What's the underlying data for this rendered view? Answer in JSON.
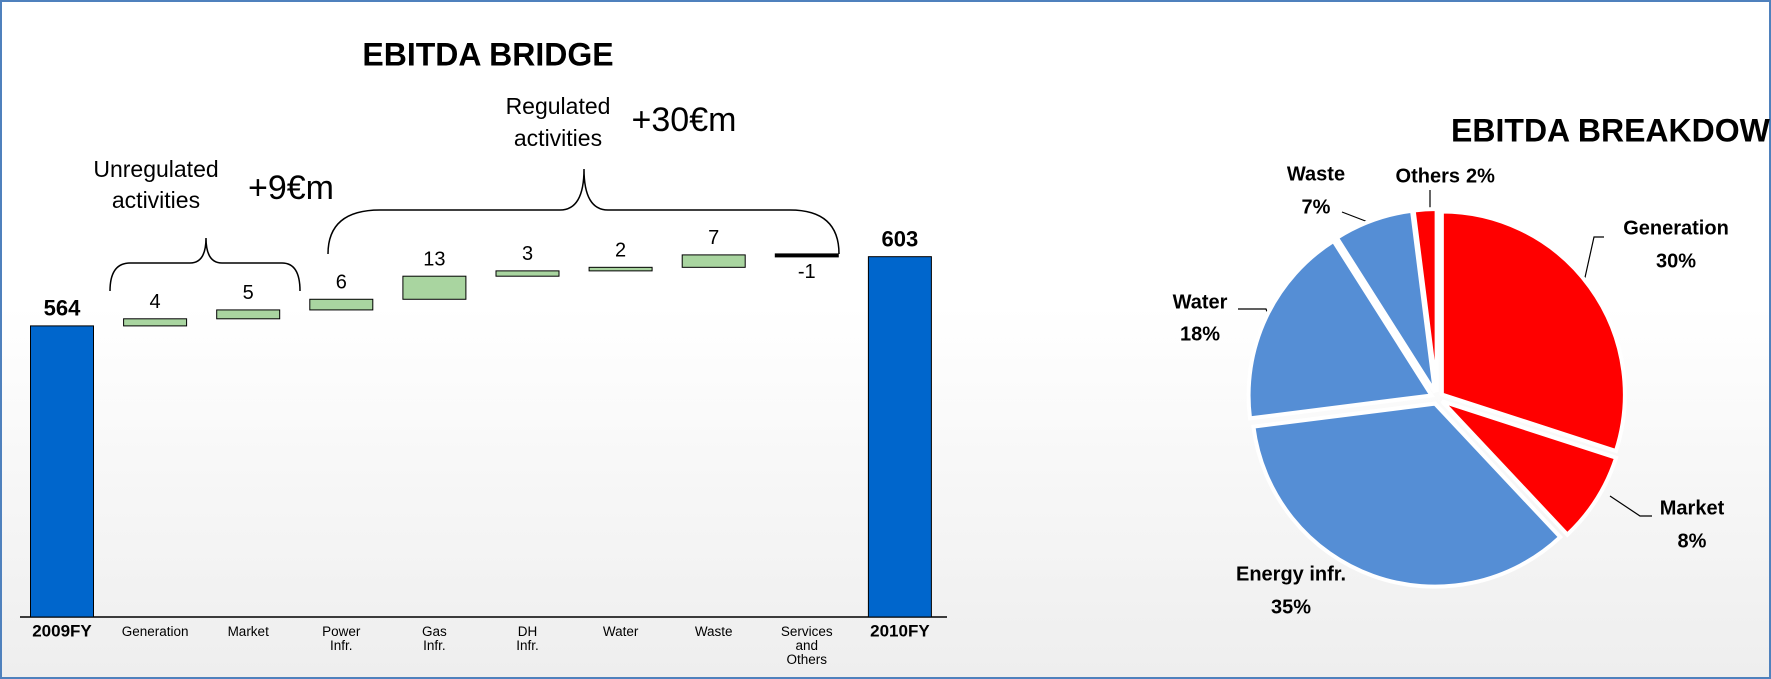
{
  "chart_data": [
    {
      "type": "waterfall",
      "title": "EBITDA BRIDGE",
      "categories": [
        "2009FY",
        "Generation",
        "Market",
        "Power Infr.",
        "Gas Infr.",
        "DH Infr.",
        "Water",
        "Waste",
        "Services and Others",
        "2010FY"
      ],
      "values": [
        564,
        4,
        5,
        6,
        13,
        3,
        2,
        7,
        -1,
        603
      ],
      "totals": [
        true,
        false,
        false,
        false,
        false,
        false,
        false,
        false,
        false,
        true
      ],
      "total_color": "#0066cc",
      "increase_color": "#a9d5a0",
      "decrease_color": "#000000",
      "ylim": [
        400,
        640
      ],
      "annotations": {
        "unregulated": "Unregulated activities",
        "unregulated_value": "+9€m",
        "regulated": "Regulated activities",
        "regulated_value": "+30€m"
      }
    },
    {
      "type": "pie",
      "title": "EBITDA BREAKDOWN",
      "categories": [
        "Generation",
        "Market",
        "Energy infr.",
        "Water",
        "Waste",
        "Others"
      ],
      "values": [
        30,
        8,
        35,
        18,
        7,
        2
      ],
      "value_labels": [
        "30%",
        "8%",
        "35%",
        "18%",
        "7%",
        "2%"
      ],
      "colors": [
        "#ff0000",
        "#ff0000",
        "#558ed5",
        "#558ed5",
        "#558ed5",
        "#ff0000"
      ]
    }
  ]
}
